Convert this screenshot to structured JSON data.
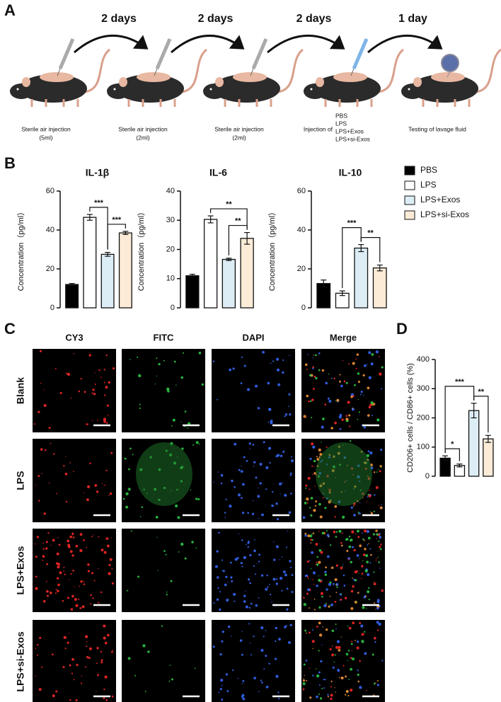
{
  "panels": {
    "a": "A",
    "b": "B",
    "c": "C",
    "d": "D"
  },
  "timeline": {
    "intervals": [
      "2 days",
      "2 days",
      "2 days",
      "1 day"
    ],
    "steps": [
      {
        "lines": [
          "Sterile air injection",
          "(5ml)"
        ]
      },
      {
        "lines": [
          "Sterile air injection",
          "(2ml)"
        ]
      },
      {
        "lines": [
          "Sterile air injection",
          "(2ml)"
        ]
      },
      {
        "lines": [
          "Injection of"
        ],
        "items": [
          "PBS",
          "LPS",
          "LPS+Exos",
          "LPS+si-Exos"
        ]
      },
      {
        "lines": [
          "Testing of lavage fluid"
        ]
      }
    ]
  },
  "legend": {
    "names": [
      "PBS",
      "LPS",
      "LPS+Exos",
      "LPS+si-Exos"
    ],
    "colors": [
      "#000000",
      "#ffffff",
      "#dcedf5",
      "#fcebd6"
    ]
  },
  "imaging": {
    "columns": [
      "CY3",
      "FITC",
      "DAPI",
      "Merge"
    ],
    "rows": [
      "Blank",
      "LPS",
      "LPS+Exos",
      "LPS+si-Exos"
    ]
  },
  "chart_data": [
    {
      "type": "bar",
      "title": "IL-1β",
      "y_label": "Concentration（pg/ml）",
      "values": [
        12,
        46.5,
        27.5,
        38.5
      ],
      "errors": [
        0.5,
        1.5,
        1,
        0.8
      ],
      "ylim": [
        0,
        60
      ],
      "yticks": [
        0,
        20,
        40,
        60
      ],
      "comparisons": [
        {
          "pair": [
            1,
            2
          ],
          "label": "***"
        },
        {
          "pair": [
            2,
            3
          ],
          "label": "***"
        }
      ]
    },
    {
      "type": "bar",
      "title": "IL-6",
      "y_label": "Concentration（pg/ml）",
      "values": [
        11,
        30.3,
        16.6,
        23.8
      ],
      "errors": [
        0.5,
        1.2,
        0.4,
        2
      ],
      "ylim": [
        0,
        40
      ],
      "yticks": [
        0,
        10,
        20,
        30,
        40
      ],
      "comparisons": [
        {
          "pair": [
            1,
            3
          ],
          "label": "**"
        },
        {
          "pair": [
            2,
            3
          ],
          "label": "**"
        }
      ]
    },
    {
      "type": "bar",
      "title": "IL-10",
      "y_label": "Concentration（pg/ml）",
      "values": [
        12.5,
        7.5,
        30.7,
        20.5
      ],
      "errors": [
        1.8,
        1.2,
        1.8,
        1.5
      ],
      "ylim": [
        0,
        60
      ],
      "yticks": [
        0,
        20,
        40,
        60
      ],
      "comparisons": [
        {
          "pair": [
            1,
            2
          ],
          "label": "***"
        },
        {
          "pair": [
            2,
            3
          ],
          "label": "**"
        }
      ]
    },
    {
      "type": "bar",
      "y_label": "CD206+ cells / CD86+ cells (%)",
      "values": [
        62,
        37,
        225,
        128
      ],
      "errors": [
        8,
        5,
        25,
        12
      ],
      "ylim": [
        0,
        400
      ],
      "yticks": [
        0,
        100,
        200,
        300,
        400
      ],
      "comparisons": [
        {
          "pair": [
            0,
            2
          ],
          "label": "***"
        },
        {
          "pair": [
            0,
            1
          ],
          "label": "*"
        },
        {
          "pair": [
            2,
            3
          ],
          "label": "**"
        }
      ]
    }
  ]
}
